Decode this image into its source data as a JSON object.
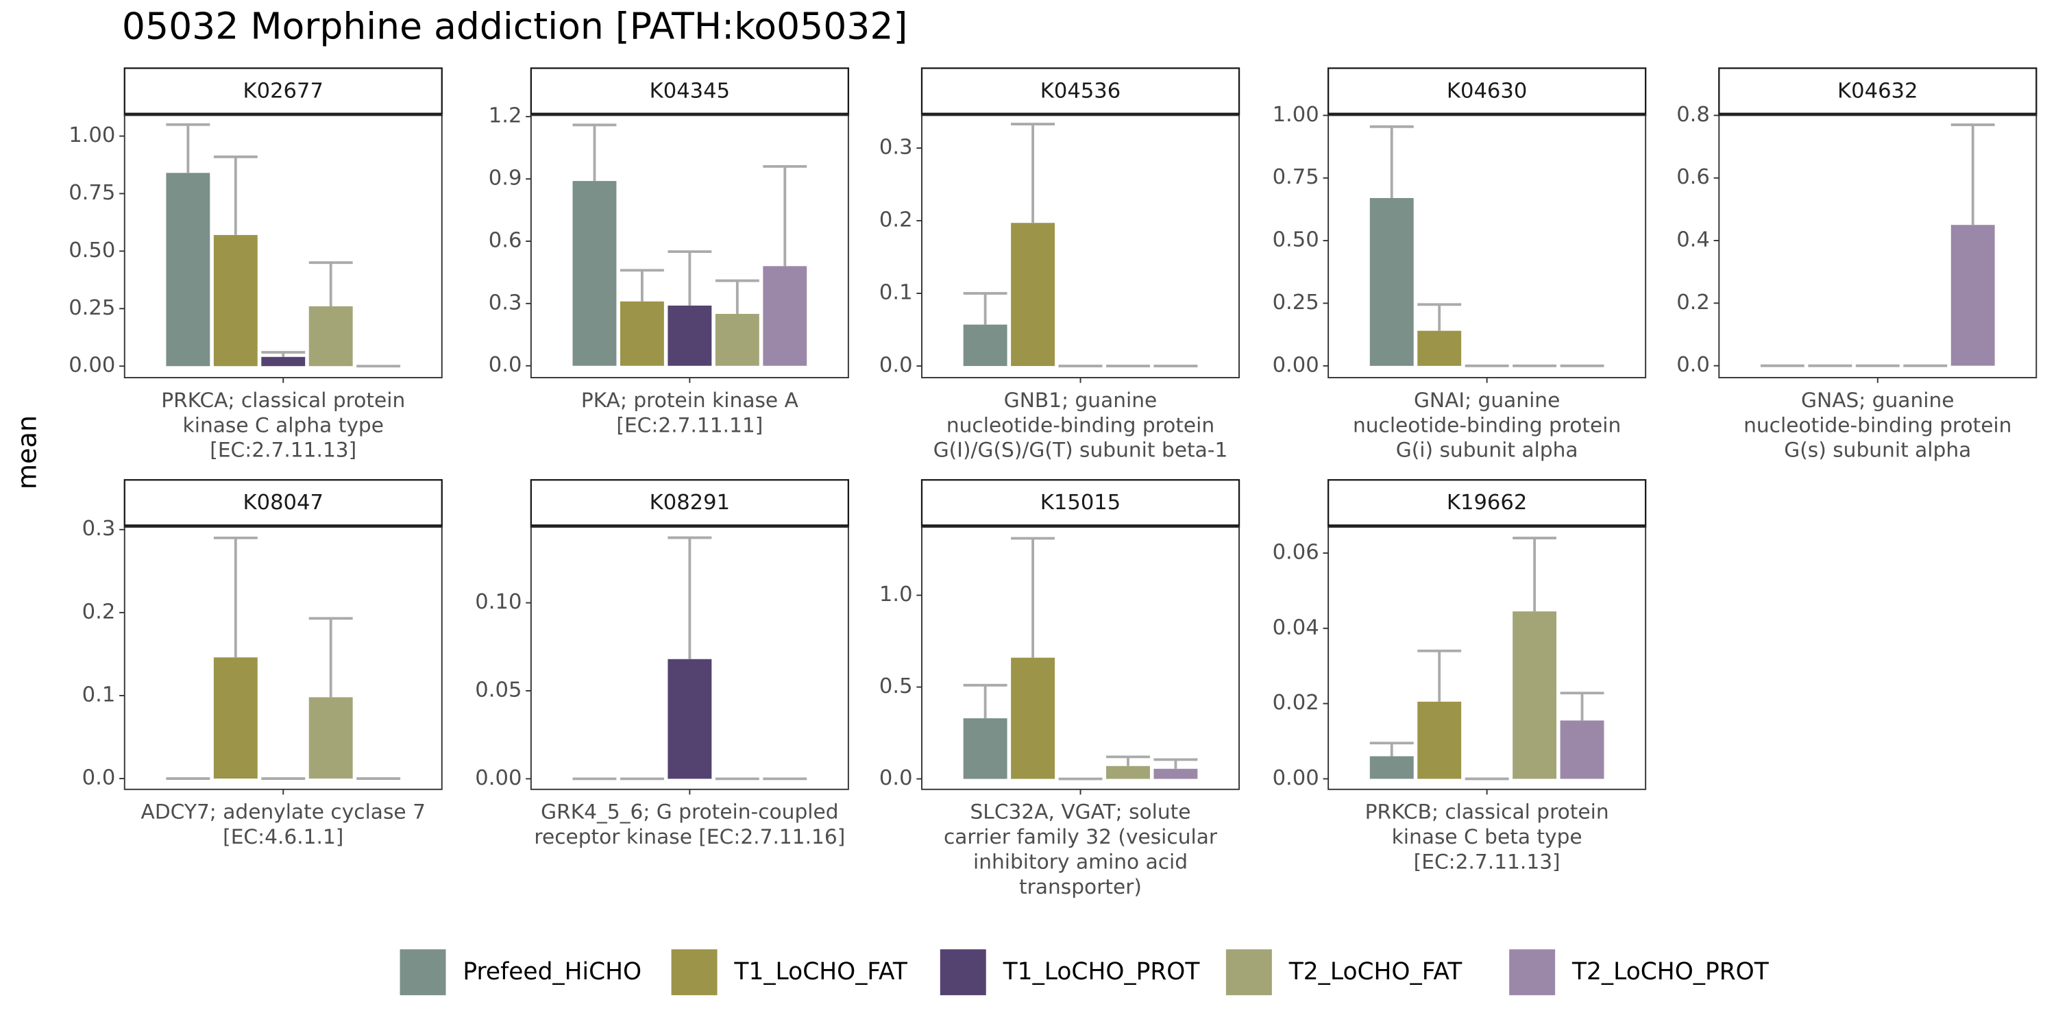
{
  "title": "05032 Morphine addiction [PATH:ko05032]",
  "y_label": "mean",
  "legend": {
    "names": [
      "Prefeed_HiCHO",
      "T1_LoCHO_FAT",
      "T1_LoCHO_PROT",
      "T2_LoCHO_FAT",
      "T2_LoCHO_PROT"
    ],
    "colors": [
      "#7a9088",
      "#9c9448",
      "#544270",
      "#a3a577",
      "#9b88a8"
    ]
  },
  "chart_data": [
    {
      "type": "bar",
      "title": "K02677",
      "x_label": [
        "PRKCA; classical protein",
        "kinase C alpha type",
        "[EC:2.7.11.13]"
      ],
      "values": [
        0.84,
        0.57,
        0.04,
        0.26,
        0
      ],
      "errors": [
        0.21,
        0.34,
        0.02,
        0.19,
        0
      ],
      "ylim": [
        -0.05,
        1.09
      ],
      "yticks": [
        {
          "value": 0,
          "label": "0.00"
        },
        {
          "value": 0.25,
          "label": "0.25"
        },
        {
          "value": 0.5,
          "label": "0.50"
        },
        {
          "value": 0.75,
          "label": "0.75"
        },
        {
          "value": 1,
          "label": "1.00"
        }
      ]
    },
    {
      "type": "bar",
      "title": "K04345",
      "x_label": [
        "PKA; protein kinase A",
        "[EC:2.7.11.11]"
      ],
      "values": [
        0.89,
        0.31,
        0.29,
        0.25,
        0.48
      ],
      "errors": [
        0.27,
        0.15,
        0.26,
        0.16,
        0.48
      ],
      "ylim": [
        -0.057,
        1.206
      ],
      "yticks": [
        {
          "value": 0,
          "label": "0.0"
        },
        0.3,
        0.6,
        0.9,
        1.2
      ]
    },
    {
      "type": "bar",
      "title": "K04536",
      "x_label": [
        "GNB1; guanine",
        "nucleotide-binding protein",
        "G(I)/G(S)/G(T) subunit beta-1"
      ],
      "values": [
        0.057,
        0.197,
        0,
        0,
        0
      ],
      "errors": [
        0.043,
        0.136,
        0,
        0,
        0
      ],
      "ylim": [
        -0.016,
        0.345
      ],
      "yticks": [
        {
          "value": 0,
          "label": "0.0"
        },
        0.1,
        0.2,
        0.3
      ]
    },
    {
      "type": "bar",
      "title": "K04630",
      "x_label": [
        "GNAI; guanine",
        "nucleotide-binding protein",
        "G(i) subunit alpha"
      ],
      "values": [
        0.67,
        0.14,
        0,
        0,
        0
      ],
      "errors": [
        0.285,
        0.105,
        0,
        0,
        0
      ],
      "ylim": [
        -0.047,
        1.0
      ],
      "yticks": [
        {
          "value": 0,
          "label": "0.00"
        },
        {
          "value": 0.25,
          "label": "0.25"
        },
        {
          "value": 0.5,
          "label": "0.50"
        },
        {
          "value": 0.75,
          "label": "0.75"
        },
        {
          "value": 1,
          "label": "1.00"
        }
      ]
    },
    {
      "type": "bar",
      "title": "K04632",
      "x_label": [
        "GNAS; guanine",
        "nucleotide-binding protein",
        "G(s) subunit alpha"
      ],
      "values": [
        0,
        0,
        0,
        0,
        0.45
      ],
      "errors": [
        0,
        0,
        0,
        0,
        0.32
      ],
      "ylim": [
        -0.038,
        0.8
      ],
      "yticks": [
        {
          "value": 0,
          "label": "0.0"
        },
        0.2,
        0.4,
        0.6,
        0.8
      ]
    },
    {
      "type": "bar",
      "title": "K08047",
      "x_label": [
        "ADCY7; adenylate cyclase 7",
        "[EC:4.6.1.1]"
      ],
      "values": [
        0,
        0.146,
        0,
        0.098,
        0
      ],
      "errors": [
        0,
        0.144,
        0,
        0.095,
        0
      ],
      "ylim": [
        -0.013,
        0.303
      ],
      "yticks": [
        {
          "value": 0,
          "label": "0.0"
        },
        0.1,
        0.2,
        0.3
      ]
    },
    {
      "type": "bar",
      "title": "K08291",
      "x_label": [
        "GRK4_5_6; G protein-coupled",
        "receptor kinase [EC:2.7.11.16]"
      ],
      "values": [
        0,
        0,
        0.068,
        0,
        0
      ],
      "errors": [
        0,
        0,
        0.069,
        0,
        0
      ],
      "ylim": [
        -0.006,
        0.143
      ],
      "yticks": [
        {
          "value": 0,
          "label": "0.00"
        },
        0.05,
        {
          "value": 0.1,
          "label": "0.10"
        }
      ]
    },
    {
      "type": "bar",
      "title": "K15015",
      "x_label": [
        "SLC32A, VGAT; solute",
        "carrier family 32 (vesicular",
        "inhibitory amino acid",
        "transporter)"
      ],
      "values": [
        0.33,
        0.66,
        0,
        0.07,
        0.055
      ],
      "errors": [
        0.18,
        0.65,
        0,
        0.05,
        0.05
      ],
      "ylim": [
        -0.057,
        1.371
      ],
      "yticks": [
        {
          "value": 0,
          "label": "0.0"
        },
        0.5,
        {
          "value": 1,
          "label": "1.0"
        }
      ]
    },
    {
      "type": "bar",
      "title": "K19662",
      "x_label": [
        "PRKCB; classical protein",
        "kinase C beta type",
        "[EC:2.7.11.13]"
      ],
      "values": [
        0.006,
        0.0205,
        0,
        0.0445,
        0.0155
      ],
      "errors": [
        0.0035,
        0.0135,
        0,
        0.0195,
        0.0073
      ],
      "ylim": [
        -0.0028,
        0.0669
      ],
      "yticks": [
        {
          "value": 0,
          "label": "0.00"
        },
        0.02,
        0.04,
        0.06
      ]
    }
  ]
}
